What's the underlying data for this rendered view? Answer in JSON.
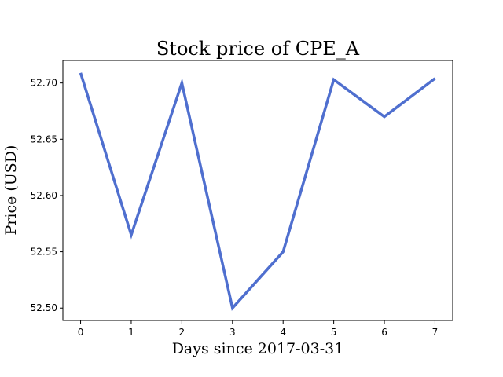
{
  "chart_data": {
    "type": "line",
    "title": "Stock price of CPE_A",
    "xlabel": "Days since 2017-03-31",
    "ylabel": "Price (USD)",
    "x": [
      0,
      1,
      2,
      3,
      4,
      5,
      6,
      7
    ],
    "series": [
      {
        "values": [
          52.709,
          52.565,
          52.7,
          52.5,
          52.55,
          52.703,
          52.67,
          52.704
        ],
        "color": "#4f6fcf"
      }
    ],
    "x_ticks": [
      0,
      1,
      2,
      3,
      4,
      5,
      6,
      7
    ],
    "y_ticks": [
      "52.50",
      "52.55",
      "52.60",
      "52.65",
      "52.70"
    ],
    "xlim": [
      -0.35,
      7.35
    ],
    "ylim": [
      52.489,
      52.72
    ],
    "grid": false
  }
}
